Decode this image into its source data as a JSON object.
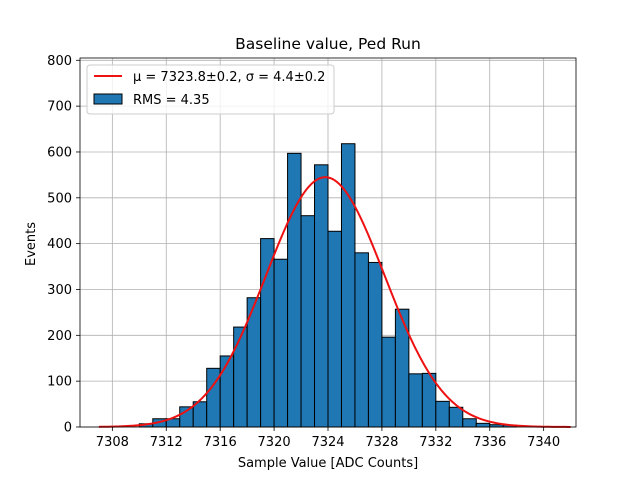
{
  "chart_data": {
    "type": "bar",
    "title": "Baseline value, Ped Run",
    "xlabel": "Sample Value [ADC Counts]",
    "ylabel": "Events",
    "xlim": [
      7305.6,
      7342.4
    ],
    "ylim": [
      0,
      805
    ],
    "xticks": [
      7308,
      7312,
      7316,
      7320,
      7324,
      7328,
      7332,
      7336,
      7340
    ],
    "yticks": [
      0,
      100,
      200,
      300,
      400,
      500,
      600,
      700,
      800
    ],
    "grid": true,
    "legend_position": "upper-left",
    "bin_width": 1,
    "bins": [
      {
        "x0": 7310,
        "value": 7
      },
      {
        "x0": 7311,
        "value": 18
      },
      {
        "x0": 7312,
        "value": 18
      },
      {
        "x0": 7313,
        "value": 44
      },
      {
        "x0": 7314,
        "value": 55
      },
      {
        "x0": 7315,
        "value": 128
      },
      {
        "x0": 7316,
        "value": 155
      },
      {
        "x0": 7317,
        "value": 218
      },
      {
        "x0": 7318,
        "value": 282
      },
      {
        "x0": 7319,
        "value": 411
      },
      {
        "x0": 7320,
        "value": 366
      },
      {
        "x0": 7321,
        "value": 597
      },
      {
        "x0": 7322,
        "value": 461
      },
      {
        "x0": 7323,
        "value": 572
      },
      {
        "x0": 7324,
        "value": 427
      },
      {
        "x0": 7325,
        "value": 618
      },
      {
        "x0": 7326,
        "value": 380
      },
      {
        "x0": 7327,
        "value": 359
      },
      {
        "x0": 7328,
        "value": 196
      },
      {
        "x0": 7329,
        "value": 257
      },
      {
        "x0": 7330,
        "value": 116
      },
      {
        "x0": 7331,
        "value": 117
      },
      {
        "x0": 7332,
        "value": 56
      },
      {
        "x0": 7333,
        "value": 43
      },
      {
        "x0": 7334,
        "value": 18
      },
      {
        "x0": 7335,
        "value": 8
      },
      {
        "x0": 7336,
        "value": 5
      },
      {
        "x0": 7337,
        "value": 4
      }
    ],
    "fit": {
      "amplitude": 545,
      "mu": 7323.8,
      "sigma": 4.4,
      "x_range": [
        7307,
        7342
      ]
    },
    "series": [
      {
        "name": "fit",
        "legend_text": "μ = 7323.8±0.2, σ = 4.4±0.2",
        "color": "#ee1111"
      },
      {
        "name": "hist",
        "legend_text": "RMS = 4.35",
        "color": "#1f77b4"
      }
    ]
  }
}
